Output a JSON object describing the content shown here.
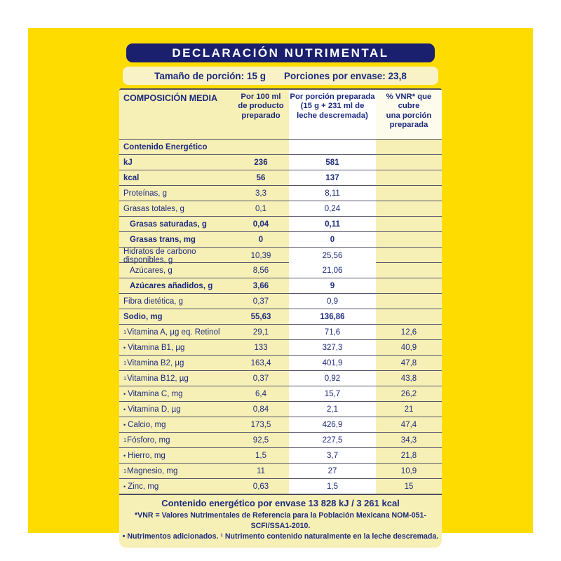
{
  "colors": {
    "brand_yellow": "#FFDC00",
    "panel_cream": "#F7F0B6",
    "navy_text": "#1C2A7E",
    "pill_navy": "#1A1F6E",
    "highlight_column": "#FFFFFF"
  },
  "header": {
    "title": "DECLARACIÓN NUTRIMENTAL"
  },
  "serving": {
    "portion_label": "Tamaño de porción:",
    "portion_value": "15 g",
    "servings_label": "Porciones por envase:",
    "servings_value": "23,8"
  },
  "table": {
    "columns": [
      "COMPOSICIÓN MEDIA",
      "Por 100 ml\nde producto\npreparado",
      "Por porción preparada\n(15 g + 231 ml de\nleche descremada)",
      "% VNR* que\ncubre\nuna porción\npreparada"
    ],
    "rows": [
      {
        "label": "Contenido Energético",
        "marker": "",
        "indent": false,
        "bold": true,
        "per_100ml": "",
        "per_portion": "",
        "pct_vnr": ""
      },
      {
        "label": "kJ",
        "marker": "",
        "indent": false,
        "bold": true,
        "per_100ml": "236",
        "per_portion": "581",
        "pct_vnr": ""
      },
      {
        "label": "kcal",
        "marker": "",
        "indent": false,
        "bold": true,
        "per_100ml": "56",
        "per_portion": "137",
        "pct_vnr": ""
      },
      {
        "label": "Proteínas, g",
        "marker": "",
        "indent": false,
        "bold": false,
        "per_100ml": "3,3",
        "per_portion": "8,11",
        "pct_vnr": ""
      },
      {
        "label": "Grasas totales, g",
        "marker": "",
        "indent": false,
        "bold": false,
        "per_100ml": "0,1",
        "per_portion": "0,24",
        "pct_vnr": ""
      },
      {
        "label": "Grasas saturadas, g",
        "marker": "",
        "indent": true,
        "bold": true,
        "per_100ml": "0,04",
        "per_portion": "0,11",
        "pct_vnr": ""
      },
      {
        "label": "Grasas trans, mg",
        "marker": "",
        "indent": true,
        "bold": true,
        "per_100ml": "0",
        "per_portion": "0",
        "pct_vnr": ""
      },
      {
        "label": "Hidratos de carbono disponibles, g",
        "marker": "",
        "indent": false,
        "bold": false,
        "per_100ml": "10,39",
        "per_portion": "25,56",
        "pct_vnr": ""
      },
      {
        "label": "Azúcares, g",
        "marker": "",
        "indent": true,
        "bold": false,
        "per_100ml": "8,56",
        "per_portion": "21,06",
        "pct_vnr": ""
      },
      {
        "label": "Azúcares añadidos, g",
        "marker": "",
        "indent": true,
        "bold": true,
        "per_100ml": "3,66",
        "per_portion": "9",
        "pct_vnr": ""
      },
      {
        "label": "Fibra dietética, g",
        "marker": "",
        "indent": false,
        "bold": false,
        "per_100ml": "0,37",
        "per_portion": "0,9",
        "pct_vnr": ""
      },
      {
        "label": "Sodio, mg",
        "marker": "",
        "indent": false,
        "bold": true,
        "per_100ml": "55,63",
        "per_portion": "136,86",
        "pct_vnr": ""
      },
      {
        "label": "Vitamina A, µg eq. Retinol",
        "marker": "sup",
        "indent": false,
        "bold": false,
        "per_100ml": "29,1",
        "per_portion": "71,6",
        "pct_vnr": "12,6"
      },
      {
        "label": "Vitamina B1, µg",
        "marker": "bullet",
        "indent": false,
        "bold": false,
        "per_100ml": "133",
        "per_portion": "327,3",
        "pct_vnr": "40,9"
      },
      {
        "label": "Vitamina B2, µg",
        "marker": "sup",
        "indent": false,
        "bold": false,
        "per_100ml": "163,4",
        "per_portion": "401,9",
        "pct_vnr": "47,8"
      },
      {
        "label": "Vitamina B12, µg",
        "marker": "sup",
        "indent": false,
        "bold": false,
        "per_100ml": "0,37",
        "per_portion": "0,92",
        "pct_vnr": "43,8"
      },
      {
        "label": "Vitamina C, mg",
        "marker": "bullet",
        "indent": false,
        "bold": false,
        "per_100ml": "6,4",
        "per_portion": "15,7",
        "pct_vnr": "26,2"
      },
      {
        "label": "Vitamina D, µg",
        "marker": "bullet",
        "indent": false,
        "bold": false,
        "per_100ml": "0,84",
        "per_portion": "2,1",
        "pct_vnr": "21"
      },
      {
        "label": "Calcio, mg",
        "marker": "bullet",
        "indent": false,
        "bold": false,
        "per_100ml": "173,5",
        "per_portion": "426,9",
        "pct_vnr": "47,4"
      },
      {
        "label": "Fósforo, mg",
        "marker": "sup",
        "indent": false,
        "bold": false,
        "per_100ml": "92,5",
        "per_portion": "227,5",
        "pct_vnr": "34,3"
      },
      {
        "label": "Hierro, mg",
        "marker": "bullet",
        "indent": false,
        "bold": false,
        "per_100ml": "1,5",
        "per_portion": "3,7",
        "pct_vnr": "21,8"
      },
      {
        "label": "Magnesio, mg",
        "marker": "sup",
        "indent": false,
        "bold": false,
        "per_100ml": "11",
        "per_portion": "27",
        "pct_vnr": "10,9"
      },
      {
        "label": "Zinc, mg",
        "marker": "bullet",
        "indent": false,
        "bold": false,
        "per_100ml": "0,63",
        "per_portion": "1,5",
        "pct_vnr": "15"
      }
    ]
  },
  "footer": {
    "energy_per_container": "Contenido energético por envase 13 828 kJ / 3 261 kcal"
  },
  "footnotes": {
    "line1": "*VNR = Valores Nutrimentales de Referencia para la Población Mexicana NOM-051-SCFI/SSA1-2010.",
    "line2": "• Nutrimentos adicionados. ¹ Nutrimento contenido naturalmente en la leche descremada."
  }
}
